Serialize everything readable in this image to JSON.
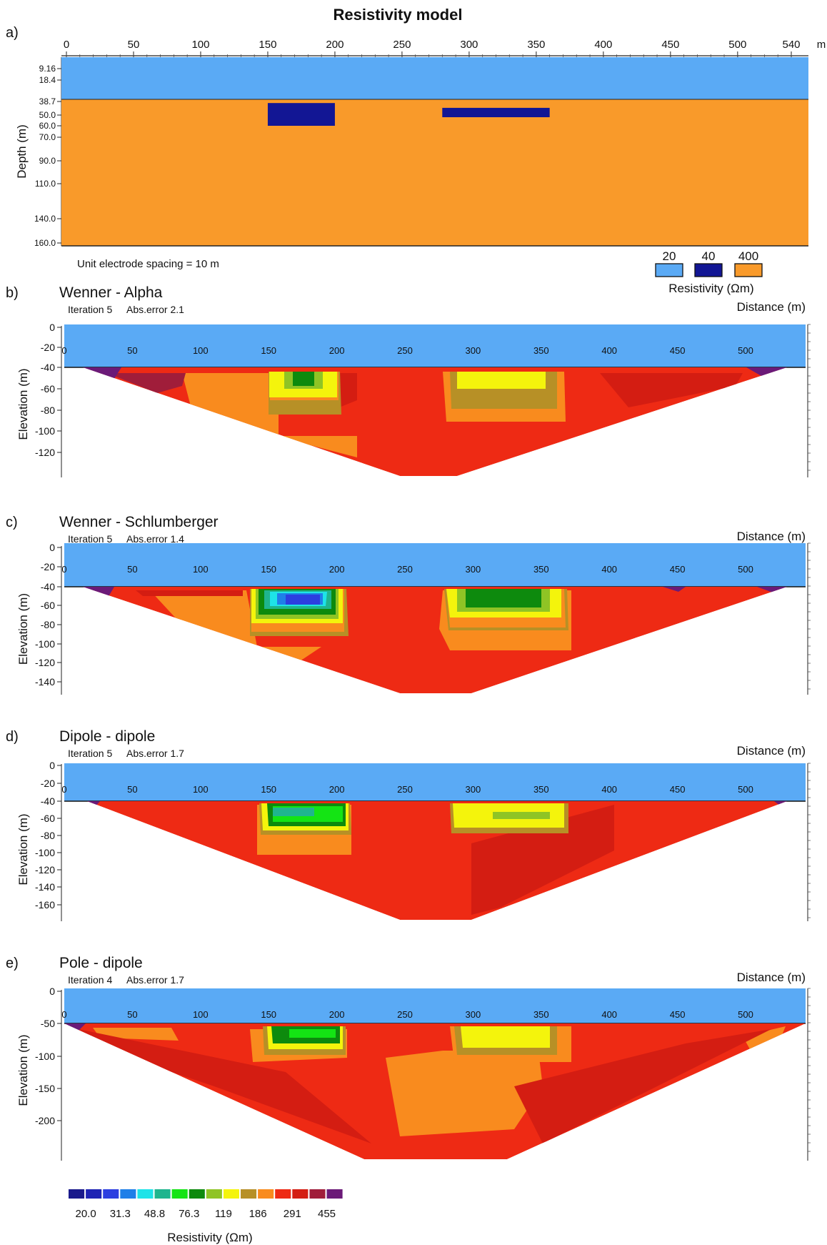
{
  "figure": {
    "panel_a": {
      "letter": "a)",
      "title": "Resistivity model",
      "x_unit": "m",
      "x_ticks": [
        "0",
        "50",
        "100",
        "150",
        "200",
        "250",
        "300",
        "350",
        "400",
        "450",
        "500",
        "540"
      ],
      "depth_ticks": [
        "9.16",
        "18.4",
        "38.7",
        "50.0",
        "60.0",
        "70.0",
        "90.0",
        "110.0",
        "140.0",
        "160.0"
      ],
      "ylabel": "Depth (m)",
      "note": "Unit electrode spacing = 10 m",
      "legend_title": "Resistivity (Ωm)",
      "legend": [
        {
          "label": "20",
          "color": "#5aaaf5"
        },
        {
          "label": "40",
          "color": "#121694"
        },
        {
          "label": "400",
          "color": "#f99a2a"
        }
      ],
      "blocks": [
        {
          "x0": 150,
          "x1": 200,
          "d0": 40,
          "d1": 60,
          "resistivity": 40
        },
        {
          "x0": 280,
          "x1": 360,
          "d0": 44,
          "d1": 52,
          "resistivity": 40
        }
      ]
    },
    "sections": [
      {
        "letter": "b)",
        "title": "Wenner - Alpha",
        "iteration": "Iteration 5",
        "abs_error": "Abs.error 2.1",
        "xlabel": "Distance (m)",
        "ylabel": "Elevation (m)",
        "y_ticks": [
          "0",
          "-20",
          "-40",
          "-60",
          "-80",
          "-100",
          "-120"
        ],
        "x_ticks": [
          "0",
          "50",
          "100",
          "150",
          "200",
          "250",
          "300",
          "350",
          "400",
          "450",
          "500"
        ]
      },
      {
        "letter": "c)",
        "title": "Wenner - Schlumberger",
        "iteration": "Iteration 5",
        "abs_error": "Abs.error 1.4",
        "xlabel": "Distance (m)",
        "ylabel": "Elevation (m)",
        "y_ticks": [
          "0",
          "-20",
          "-40",
          "-60",
          "-80",
          "-100",
          "-120",
          "-140"
        ],
        "x_ticks": [
          "0",
          "50",
          "100",
          "150",
          "200",
          "250",
          "300",
          "350",
          "400",
          "450",
          "500"
        ]
      },
      {
        "letter": "d)",
        "title": "Dipole - dipole",
        "iteration": "Iteration 5",
        "abs_error": "Abs.error 1.7",
        "xlabel": "Distance (m)",
        "ylabel": "Elevation (m)",
        "y_ticks": [
          "0",
          "-20",
          "-40",
          "-60",
          "-80",
          "-100",
          "-120",
          "-140",
          "-160"
        ],
        "x_ticks": [
          "0",
          "50",
          "100",
          "150",
          "200",
          "250",
          "300",
          "350",
          "400",
          "450",
          "500"
        ]
      },
      {
        "letter": "e)",
        "title": "Pole - dipole",
        "iteration": "Iteration 4",
        "abs_error": "Abs.error 1.7",
        "xlabel": "Distance (m)",
        "ylabel": "Elevation (m)",
        "y_ticks": [
          "0",
          "-50",
          "-100",
          "-150",
          "-200"
        ],
        "x_ticks": [
          "0",
          "50",
          "100",
          "150",
          "200",
          "250",
          "300",
          "350",
          "400",
          "450",
          "500"
        ]
      }
    ],
    "colorbar": {
      "title": "Resistivity (Ωm)",
      "labels": [
        "20.0",
        "31.3",
        "48.8",
        "76.3",
        "119",
        "186",
        "291",
        "455"
      ],
      "colors": [
        "#1a1a8c",
        "#1e23b4",
        "#2c3ee0",
        "#1f7fe8",
        "#1ee3e8",
        "#1fb58e",
        "#14e414",
        "#0d8a0d",
        "#8fc425",
        "#f4f40c",
        "#b79026",
        "#f98b1e",
        "#ee2a14",
        "#d41d12",
        "#a01d3a",
        "#6b1a78"
      ]
    }
  }
}
